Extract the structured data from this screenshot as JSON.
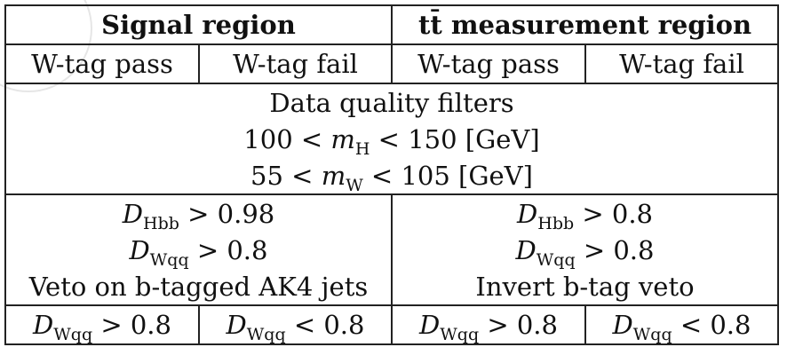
{
  "table": {
    "header": {
      "signal_region": "Signal region",
      "ttbar_region_tt": "tt̄",
      "ttbar_region_rest": " measurement region"
    },
    "subheader": {
      "col1": "W-tag pass",
      "col2": "W-tag fail",
      "col3": "W-tag pass",
      "col4": "W-tag fail"
    },
    "common_cuts": {
      "line1": "Data quality filters",
      "line2_lhs": "100 < ",
      "line2_var": "m",
      "line2_sub": "H",
      "line2_rhs": " < 150 [GeV]",
      "line3_lhs": "55 < ",
      "line3_var": "m",
      "line3_sub": "W",
      "line3_rhs": " < 105 [GeV]"
    },
    "signal_cuts": {
      "hbb_var": "D",
      "hbb_sub": "Hbb",
      "hbb_rhs": " > 0.98",
      "wqq_var": "D",
      "wqq_sub": "Wqq",
      "wqq_rhs": " > 0.8",
      "veto": "Veto on b-tagged AK4 jets"
    },
    "ttbar_cuts": {
      "hbb_var": "D",
      "hbb_sub": "Hbb",
      "hbb_rhs": " > 0.8",
      "wqq_var": "D",
      "wqq_sub": "Wqq",
      "wqq_rhs": " > 0.8",
      "veto": "Invert b-tag veto"
    },
    "wtag_cuts": {
      "c1_var": "D",
      "c1_sub": "Wqq",
      "c1_rhs": " > 0.8",
      "c2_var": "D",
      "c2_sub": "Wqq",
      "c2_rhs": " < 0.8",
      "c3_var": "D",
      "c3_sub": "Wqq",
      "c3_rhs": " > 0.8",
      "c4_var": "D",
      "c4_sub": "Wqq",
      "c4_rhs": " < 0.8"
    }
  }
}
